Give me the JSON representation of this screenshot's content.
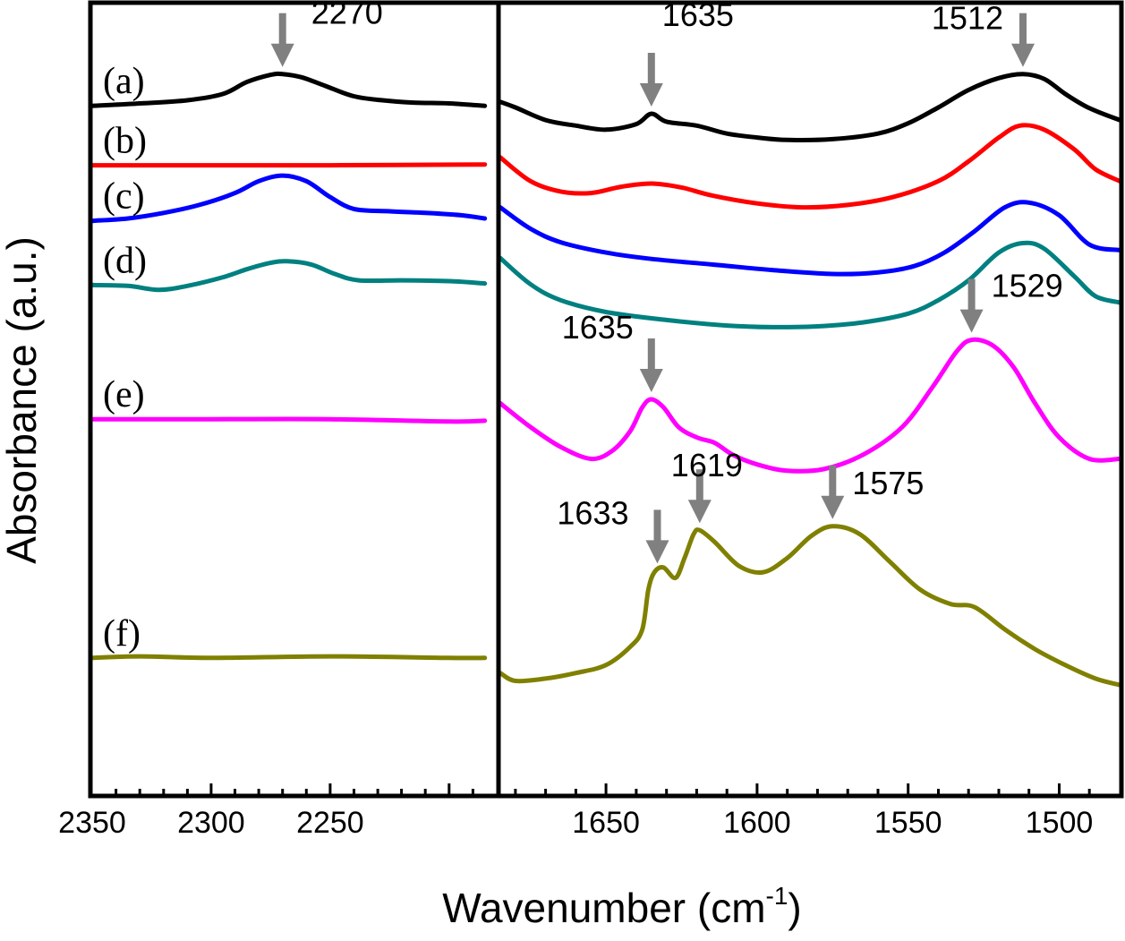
{
  "chart_data": {
    "type": "line",
    "xlabel": "Wavenumber (cm",
    "xlabel_superscript": "-1",
    "xlabel_suffix": ")",
    "ylabel": "Absorbance (a.u.)",
    "grid": false,
    "panels": [
      {
        "id": "left",
        "xlim": [
          2350,
          2180
        ],
        "ticks": [
          2350,
          2300,
          2250
        ]
      },
      {
        "id": "right",
        "xlim": [
          1685,
          1480
        ],
        "ticks": [
          1650,
          1600,
          1550,
          1500
        ]
      }
    ],
    "series": [
      {
        "name": "(a)",
        "color": "#000000",
        "left": [
          [
            2350,
            0.13
          ],
          [
            2330,
            0.127
          ],
          [
            2310,
            0.123
          ],
          [
            2295,
            0.115
          ],
          [
            2285,
            0.1
          ],
          [
            2275,
            0.091
          ],
          [
            2270,
            0.09
          ],
          [
            2262,
            0.094
          ],
          [
            2252,
            0.105
          ],
          [
            2240,
            0.118
          ],
          [
            2228,
            0.123
          ],
          [
            2215,
            0.126
          ],
          [
            2200,
            0.127
          ],
          [
            2185,
            0.13
          ]
        ],
        "right": [
          [
            1685,
            0.125
          ],
          [
            1680,
            0.132
          ],
          [
            1670,
            0.148
          ],
          [
            1660,
            0.155
          ],
          [
            1650,
            0.16
          ],
          [
            1640,
            0.153
          ],
          [
            1635,
            0.14
          ],
          [
            1630,
            0.15
          ],
          [
            1620,
            0.155
          ],
          [
            1610,
            0.165
          ],
          [
            1600,
            0.17
          ],
          [
            1590,
            0.173
          ],
          [
            1575,
            0.172
          ],
          [
            1560,
            0.165
          ],
          [
            1550,
            0.152
          ],
          [
            1540,
            0.132
          ],
          [
            1530,
            0.11
          ],
          [
            1520,
            0.095
          ],
          [
            1512,
            0.09
          ],
          [
            1505,
            0.096
          ],
          [
            1498,
            0.115
          ],
          [
            1490,
            0.133
          ],
          [
            1480,
            0.148
          ]
        ]
      },
      {
        "name": "(b)",
        "color": "#ff0000",
        "left": [
          [
            2350,
            0.205
          ],
          [
            2300,
            0.205
          ],
          [
            2250,
            0.205
          ],
          [
            2185,
            0.204
          ]
        ],
        "right": [
          [
            1685,
            0.195
          ],
          [
            1675,
            0.225
          ],
          [
            1665,
            0.238
          ],
          [
            1655,
            0.24
          ],
          [
            1645,
            0.232
          ],
          [
            1635,
            0.228
          ],
          [
            1625,
            0.233
          ],
          [
            1615,
            0.243
          ],
          [
            1600,
            0.253
          ],
          [
            1585,
            0.258
          ],
          [
            1570,
            0.255
          ],
          [
            1555,
            0.245
          ],
          [
            1540,
            0.225
          ],
          [
            1530,
            0.2
          ],
          [
            1520,
            0.17
          ],
          [
            1513,
            0.155
          ],
          [
            1505,
            0.16
          ],
          [
            1495,
            0.185
          ],
          [
            1488,
            0.21
          ],
          [
            1480,
            0.225
          ]
        ]
      },
      {
        "name": "(c)",
        "color": "#0000ff",
        "left": [
          [
            2350,
            0.275
          ],
          [
            2335,
            0.272
          ],
          [
            2320,
            0.265
          ],
          [
            2305,
            0.255
          ],
          [
            2290,
            0.24
          ],
          [
            2280,
            0.225
          ],
          [
            2270,
            0.218
          ],
          [
            2260,
            0.225
          ],
          [
            2250,
            0.245
          ],
          [
            2240,
            0.26
          ],
          [
            2225,
            0.263
          ],
          [
            2210,
            0.265
          ],
          [
            2195,
            0.268
          ],
          [
            2185,
            0.272
          ]
        ],
        "right": [
          [
            1685,
            0.258
          ],
          [
            1675,
            0.285
          ],
          [
            1665,
            0.302
          ],
          [
            1650,
            0.315
          ],
          [
            1635,
            0.323
          ],
          [
            1615,
            0.33
          ],
          [
            1595,
            0.337
          ],
          [
            1575,
            0.342
          ],
          [
            1560,
            0.34
          ],
          [
            1548,
            0.332
          ],
          [
            1538,
            0.315
          ],
          [
            1528,
            0.288
          ],
          [
            1518,
            0.258
          ],
          [
            1510,
            0.252
          ],
          [
            1500,
            0.268
          ],
          [
            1490,
            0.305
          ],
          [
            1480,
            0.312
          ]
        ]
      },
      {
        "name": "(d)",
        "color": "#008080",
        "left": [
          [
            2350,
            0.356
          ],
          [
            2335,
            0.357
          ],
          [
            2322,
            0.362
          ],
          [
            2310,
            0.357
          ],
          [
            2295,
            0.346
          ],
          [
            2285,
            0.336
          ],
          [
            2275,
            0.328
          ],
          [
            2268,
            0.326
          ],
          [
            2258,
            0.33
          ],
          [
            2248,
            0.342
          ],
          [
            2238,
            0.35
          ],
          [
            2220,
            0.35
          ],
          [
            2200,
            0.351
          ],
          [
            2185,
            0.354
          ]
        ],
        "right": [
          [
            1685,
            0.322
          ],
          [
            1675,
            0.355
          ],
          [
            1665,
            0.375
          ],
          [
            1650,
            0.39
          ],
          [
            1630,
            0.4
          ],
          [
            1610,
            0.407
          ],
          [
            1595,
            0.409
          ],
          [
            1580,
            0.408
          ],
          [
            1565,
            0.403
          ],
          [
            1550,
            0.392
          ],
          [
            1540,
            0.375
          ],
          [
            1530,
            0.35
          ],
          [
            1520,
            0.315
          ],
          [
            1512,
            0.303
          ],
          [
            1505,
            0.31
          ],
          [
            1495,
            0.345
          ],
          [
            1488,
            0.37
          ],
          [
            1480,
            0.378
          ]
        ]
      },
      {
        "name": "(e)",
        "color": "#ff00ff",
        "left": [
          [
            2350,
            0.525
          ],
          [
            2300,
            0.525
          ],
          [
            2250,
            0.525
          ],
          [
            2200,
            0.528
          ],
          [
            2185,
            0.527
          ]
        ],
        "right": [
          [
            1685,
            0.505
          ],
          [
            1675,
            0.535
          ],
          [
            1665,
            0.56
          ],
          [
            1655,
            0.575
          ],
          [
            1648,
            0.565
          ],
          [
            1642,
            0.54
          ],
          [
            1638,
            0.51
          ],
          [
            1635,
            0.5
          ],
          [
            1631,
            0.51
          ],
          [
            1626,
            0.535
          ],
          [
            1620,
            0.548
          ],
          [
            1614,
            0.555
          ],
          [
            1608,
            0.57
          ],
          [
            1600,
            0.582
          ],
          [
            1590,
            0.59
          ],
          [
            1578,
            0.588
          ],
          [
            1565,
            0.57
          ],
          [
            1552,
            0.535
          ],
          [
            1542,
            0.485
          ],
          [
            1534,
            0.44
          ],
          [
            1529,
            0.425
          ],
          [
            1522,
            0.432
          ],
          [
            1515,
            0.46
          ],
          [
            1508,
            0.505
          ],
          [
            1500,
            0.548
          ],
          [
            1490,
            0.575
          ],
          [
            1480,
            0.575
          ]
        ]
      },
      {
        "name": "(f)",
        "color": "#808000",
        "left": [
          [
            2350,
            0.826
          ],
          [
            2330,
            0.824
          ],
          [
            2300,
            0.826
          ],
          [
            2250,
            0.824
          ],
          [
            2200,
            0.826
          ],
          [
            2185,
            0.826
          ]
        ],
        "right": [
          [
            1685,
            0.845
          ],
          [
            1680,
            0.855
          ],
          [
            1670,
            0.852
          ],
          [
            1660,
            0.845
          ],
          [
            1650,
            0.835
          ],
          [
            1642,
            0.812
          ],
          [
            1638,
            0.79
          ],
          [
            1636,
            0.74
          ],
          [
            1634,
            0.718
          ],
          [
            1631,
            0.712
          ],
          [
            1627,
            0.725
          ],
          [
            1624,
            0.7
          ],
          [
            1621,
            0.67
          ],
          [
            1619,
            0.665
          ],
          [
            1614,
            0.68
          ],
          [
            1606,
            0.71
          ],
          [
            1598,
            0.718
          ],
          [
            1590,
            0.7
          ],
          [
            1582,
            0.672
          ],
          [
            1575,
            0.66
          ],
          [
            1566,
            0.67
          ],
          [
            1556,
            0.705
          ],
          [
            1546,
            0.74
          ],
          [
            1536,
            0.758
          ],
          [
            1528,
            0.762
          ],
          [
            1518,
            0.79
          ],
          [
            1508,
            0.815
          ],
          [
            1498,
            0.835
          ],
          [
            1488,
            0.852
          ],
          [
            1480,
            0.86
          ]
        ]
      }
    ],
    "annotations": [
      {
        "label": "2270",
        "panel": "left",
        "x": 2270,
        "series": "(a)"
      },
      {
        "label": "1635",
        "panel": "right",
        "x": 1635,
        "series": "(a)"
      },
      {
        "label": "1512",
        "panel": "right",
        "x": 1512,
        "series": "(a)"
      },
      {
        "label": "1635",
        "panel": "right",
        "x": 1635,
        "series": "(e)"
      },
      {
        "label": "1529",
        "panel": "right",
        "x": 1529,
        "series": "(e)"
      },
      {
        "label": "1633",
        "panel": "right",
        "x": 1633,
        "series": "(f)"
      },
      {
        "label": "1619",
        "panel": "right",
        "x": 1619,
        "series": "(f)"
      },
      {
        "label": "1575",
        "panel": "right",
        "x": 1575,
        "series": "(f)"
      }
    ]
  }
}
